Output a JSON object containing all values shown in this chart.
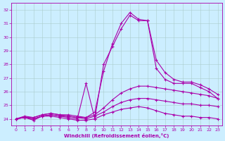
{
  "xlabel": "Windchill (Refroidissement éolien,°C)",
  "ylabel": "",
  "background_color": "#cceeff",
  "grid_color": "#aacccc",
  "line_color": "#aa00aa",
  "xlim": [
    -0.5,
    23.5
  ],
  "ylim": [
    23.5,
    32.5
  ],
  "yticks": [
    24,
    25,
    26,
    27,
    28,
    29,
    30,
    31,
    32
  ],
  "xticks": [
    0,
    1,
    2,
    3,
    4,
    5,
    6,
    7,
    8,
    9,
    10,
    11,
    12,
    13,
    14,
    15,
    16,
    17,
    18,
    19,
    20,
    21,
    22,
    23
  ],
  "lines": [
    {
      "x": [
        0,
        1,
        2,
        3,
        4,
        5,
        6,
        7,
        8,
        9,
        10,
        11,
        12,
        13,
        14,
        15,
        16,
        17,
        18,
        19,
        20,
        21,
        22,
        23
      ],
      "y": [
        24.0,
        24.1,
        23.9,
        24.2,
        24.2,
        24.1,
        24.0,
        23.9,
        23.9,
        24.0,
        24.3,
        24.5,
        24.7,
        24.8,
        24.9,
        24.8,
        24.6,
        24.4,
        24.3,
        24.2,
        24.2,
        24.1,
        24.1,
        24.0
      ]
    },
    {
      "x": [
        0,
        1,
        2,
        3,
        4,
        5,
        6,
        7,
        8,
        9,
        10,
        11,
        12,
        13,
        14,
        15,
        16,
        17,
        18,
        19,
        20,
        21,
        22,
        23
      ],
      "y": [
        24.0,
        24.1,
        24.0,
        24.2,
        24.3,
        24.2,
        24.2,
        24.1,
        24.0,
        24.2,
        24.5,
        24.9,
        25.2,
        25.4,
        25.5,
        25.5,
        25.4,
        25.3,
        25.2,
        25.1,
        25.1,
        25.0,
        25.0,
        24.9
      ]
    },
    {
      "x": [
        0,
        1,
        2,
        3,
        4,
        5,
        6,
        7,
        8,
        9,
        10,
        11,
        12,
        13,
        14,
        15,
        16,
        17,
        18,
        19,
        20,
        21,
        22,
        23
      ],
      "y": [
        24.0,
        24.1,
        24.1,
        24.3,
        24.4,
        24.3,
        24.3,
        24.2,
        24.1,
        24.3,
        24.8,
        25.4,
        25.9,
        26.2,
        26.4,
        26.4,
        26.3,
        26.2,
        26.1,
        26.0,
        25.9,
        25.8,
        25.7,
        25.5
      ]
    },
    {
      "x": [
        0,
        1,
        2,
        3,
        4,
        5,
        6,
        7,
        8,
        9,
        10,
        11,
        12,
        13,
        14,
        15,
        16,
        17,
        18,
        19,
        20,
        21,
        22,
        23
      ],
      "y": [
        24.0,
        24.1,
        24.0,
        24.2,
        24.3,
        24.2,
        24.1,
        24.0,
        26.6,
        24.0,
        28.0,
        29.3,
        30.6,
        31.6,
        31.2,
        31.2,
        27.7,
        26.9,
        26.6,
        26.6,
        26.6,
        26.3,
        26.0,
        25.5
      ]
    },
    {
      "x": [
        0,
        1,
        2,
        3,
        4,
        5,
        6,
        7,
        8,
        9,
        10,
        11,
        12,
        13,
        14,
        15,
        16,
        17,
        18,
        19,
        20,
        21,
        22,
        23
      ],
      "y": [
        24.0,
        24.2,
        24.1,
        24.3,
        24.4,
        24.3,
        24.2,
        24.1,
        24.1,
        24.5,
        27.5,
        29.5,
        31.0,
        31.8,
        31.3,
        31.2,
        28.3,
        27.4,
        26.9,
        26.7,
        26.7,
        26.5,
        26.2,
        25.8
      ]
    }
  ]
}
